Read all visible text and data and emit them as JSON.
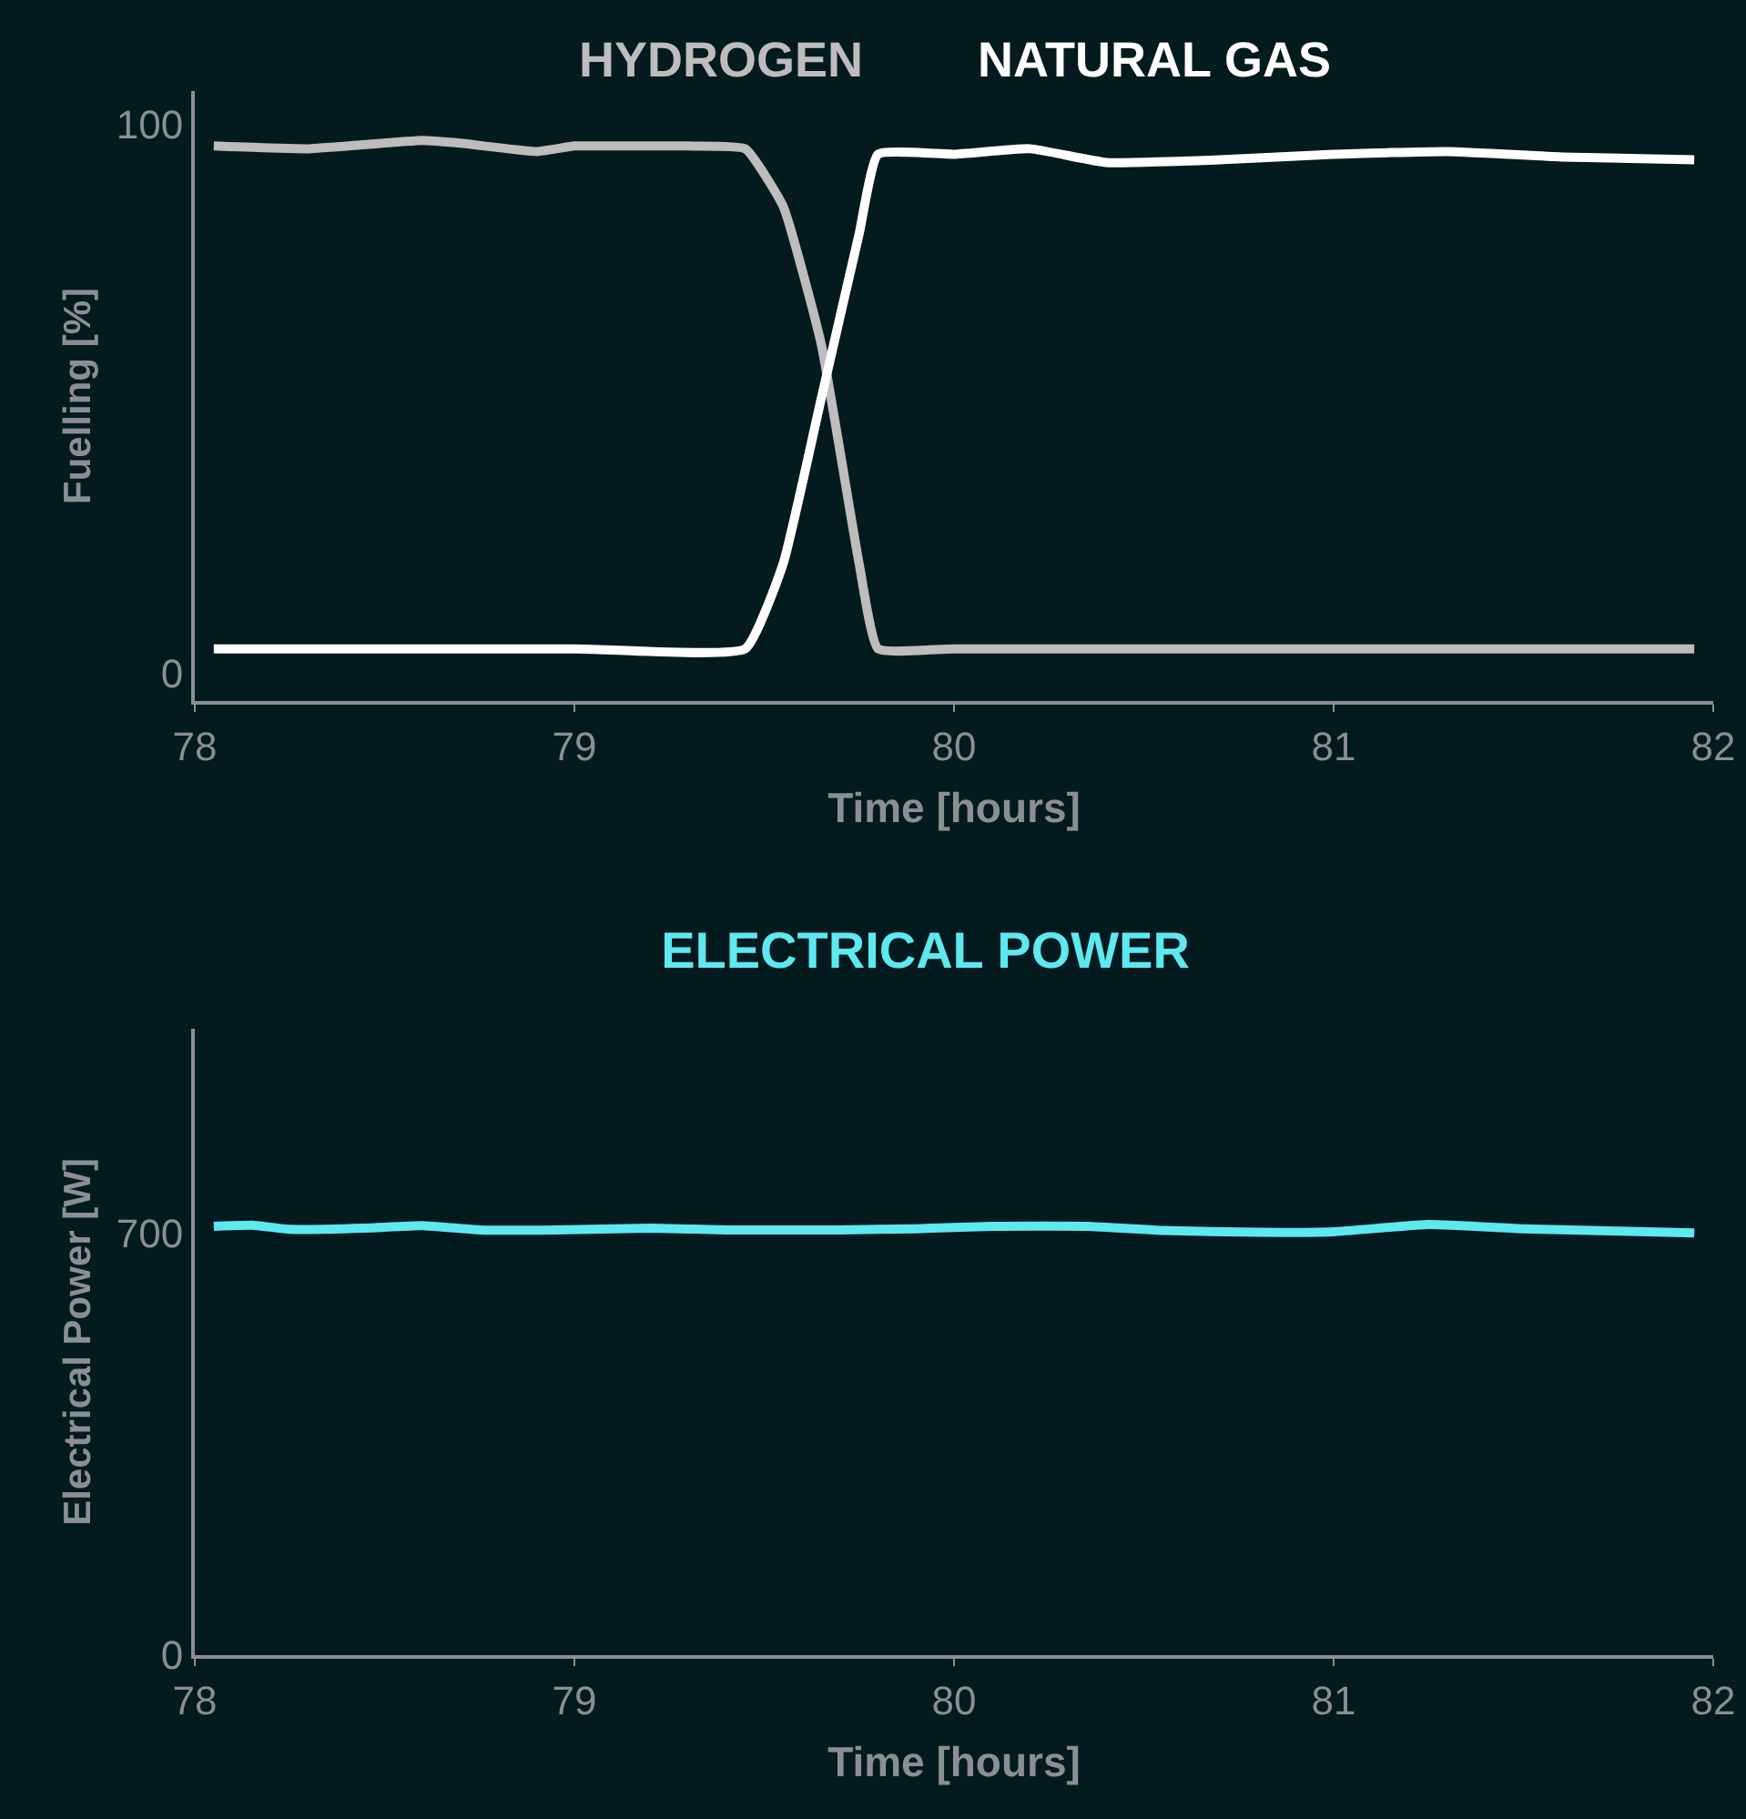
{
  "chart_data": [
    {
      "type": "line",
      "xlabel": "Time [hours]",
      "ylabel": "Fuelling [%]",
      "xlim": [
        78,
        82
      ],
      "xticks": [
        78,
        79,
        80,
        81,
        82
      ],
      "ylim": [
        -5,
        106
      ],
      "yticks": [
        0,
        100
      ],
      "series": [
        {
          "name": "HYDROGEN",
          "color": "#bdbdbd",
          "x": [
            78.05,
            78.3,
            78.6,
            78.7,
            78.9,
            79.0,
            79.1,
            79.3,
            79.45,
            79.55,
            79.65,
            79.75,
            79.8,
            80.0,
            81.0,
            81.95
          ],
          "values": [
            96,
            95.5,
            97,
            96.5,
            95,
            96,
            96,
            96,
            95.5,
            85,
            60,
            20,
            4.5,
            4.5,
            4.5,
            4.5
          ]
        },
        {
          "name": "NATURAL GAS",
          "color": "#ffffff",
          "x": [
            78.05,
            79.0,
            79.45,
            79.55,
            79.65,
            79.75,
            79.8,
            80.0,
            80.2,
            80.4,
            80.7,
            81.0,
            81.3,
            81.6,
            81.95
          ],
          "values": [
            4.5,
            4.5,
            4.5,
            20,
            50,
            80,
            94.5,
            94.5,
            95.5,
            93,
            93.5,
            94.5,
            95,
            94,
            93.5
          ]
        }
      ]
    },
    {
      "type": "line",
      "title": "ELECTRICAL POWER",
      "xlabel": "Time [hours]",
      "ylabel": "Electrical Power [W]",
      "xlim": [
        78,
        82
      ],
      "xticks": [
        78,
        79,
        80,
        81,
        82
      ],
      "ylim": [
        0,
        1040
      ],
      "yticks": [
        0,
        700
      ],
      "series": [
        {
          "color": "#5ee8f0",
          "x": [
            78.05,
            78.15,
            78.25,
            78.45,
            78.6,
            78.75,
            78.95,
            79.2,
            79.4,
            79.7,
            79.9,
            80.1,
            80.35,
            80.55,
            80.8,
            81.0,
            81.25,
            81.5,
            81.75,
            81.95
          ],
          "values": [
            712,
            714,
            707,
            709,
            713,
            706,
            706,
            709,
            706,
            706,
            708,
            712,
            712,
            705,
            702,
            703,
            715,
            708,
            704,
            701
          ]
        }
      ]
    }
  ]
}
